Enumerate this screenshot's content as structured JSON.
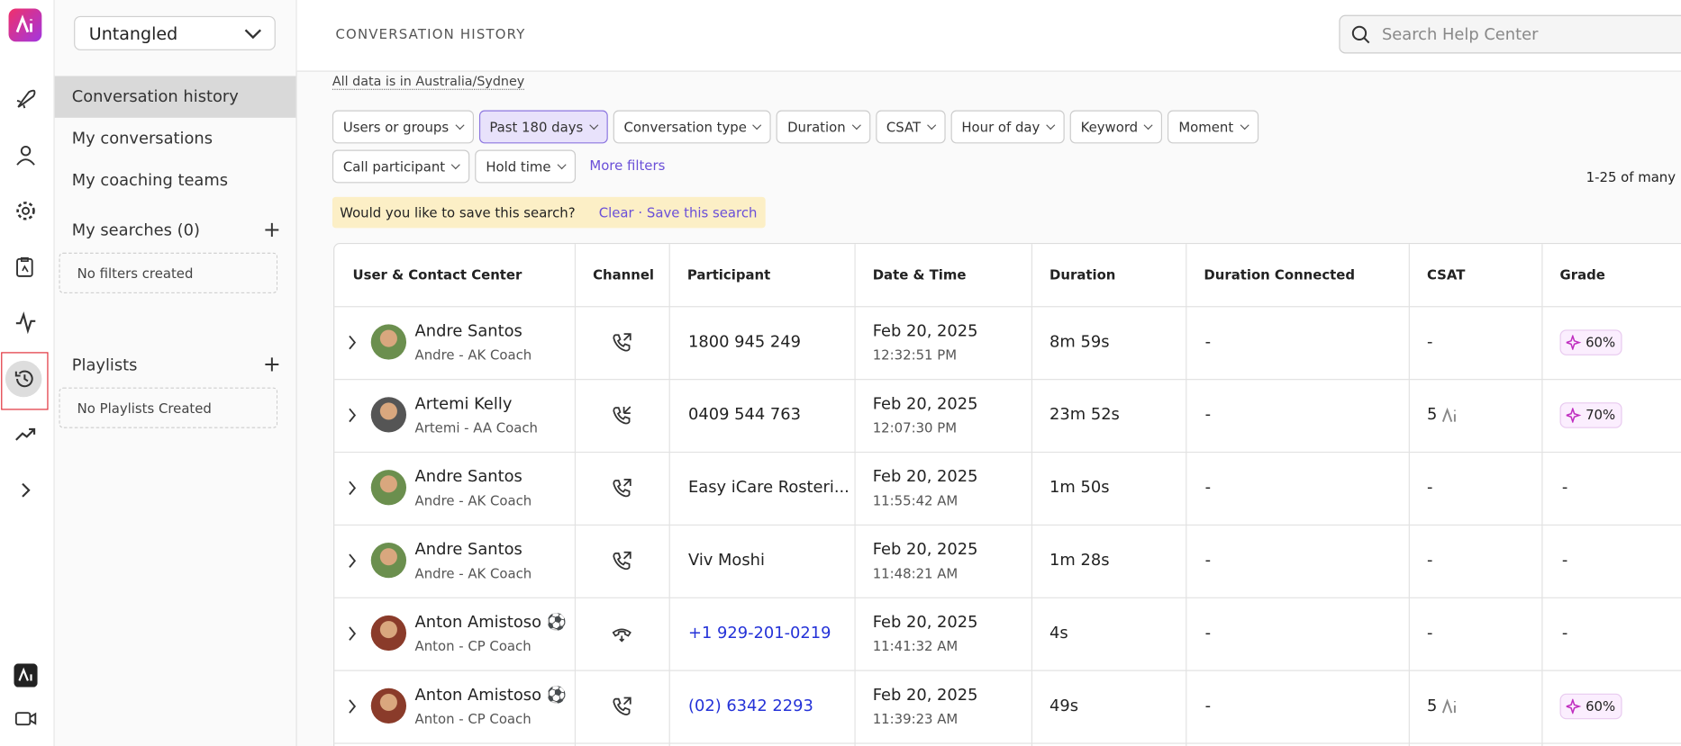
{
  "sidebar": {
    "workspace": "Untangled",
    "nav": [
      "Conversation history",
      "My conversations",
      "My coaching teams"
    ],
    "searches_title": "My searches (0)",
    "searches_empty": "No filters created",
    "playlists_title": "Playlists",
    "playlists_empty": "No Playlists Created"
  },
  "header": {
    "title": "CONVERSATION HISTORY",
    "search_placeholder": "Search Help Center"
  },
  "timezone_note": "All data is in Australia/Sydney",
  "filters": [
    "Users or groups",
    "Past 180 days",
    "Conversation type",
    "Duration",
    "CSAT",
    "Hour of day",
    "Keyword",
    "Moment",
    "Call participant",
    "Hold time"
  ],
  "more_filters": "More filters",
  "result_count": "1-25 of many",
  "save_banner": {
    "question": "Would you like to save this search?",
    "clear": "Clear",
    "separator": "·",
    "save": "Save this search"
  },
  "table": {
    "columns": [
      "User & Contact Center",
      "Channel",
      "Participant",
      "Date & Time",
      "Duration",
      "Duration Connected",
      "CSAT",
      "Grade"
    ],
    "rows": [
      {
        "name": "Andre Santos",
        "role": "Andre - AK Coach",
        "participant": "1800 945 249",
        "date": "Feb 20, 2025",
        "time": "12:32:51 PM",
        "duration": "8m 59s",
        "duration_connected": "-",
        "csat": "-",
        "grade": "60%"
      },
      {
        "name": "Artemi Kelly",
        "role": "Artemi - AA Coach",
        "participant": "0409 544 763",
        "date": "Feb 20, 2025",
        "time": "12:07:30 PM",
        "duration": "23m 52s",
        "duration_connected": "-",
        "csat": "5",
        "grade": "70%"
      },
      {
        "name": "Andre Santos",
        "role": "Andre - AK Coach",
        "participant": "Easy iCare Rosteri...",
        "date": "Feb 20, 2025",
        "time": "11:55:42 AM",
        "duration": "1m 50s",
        "duration_connected": "-",
        "csat": "-",
        "grade": "-"
      },
      {
        "name": "Andre Santos",
        "role": "Andre - AK Coach",
        "participant": "Viv Moshi",
        "date": "Feb 20, 2025",
        "time": "11:48:21 AM",
        "duration": "1m 28s",
        "duration_connected": "-",
        "csat": "-",
        "grade": "-"
      },
      {
        "name": "Anton Amistoso ⚽",
        "role": "Anton - CP Coach",
        "participant": "+1 929-201-0219",
        "date": "Feb 20, 2025",
        "time": "11:41:32 AM",
        "duration": "4s",
        "duration_connected": "-",
        "csat": "-",
        "grade": "-"
      },
      {
        "name": "Anton Amistoso ⚽",
        "role": "Anton - CP Coach",
        "participant": "(02) 6342 2293",
        "date": "Feb 20, 2025",
        "time": "11:39:23 AM",
        "duration": "49s",
        "duration_connected": "-",
        "csat": "5",
        "grade": "60%"
      }
    ]
  }
}
